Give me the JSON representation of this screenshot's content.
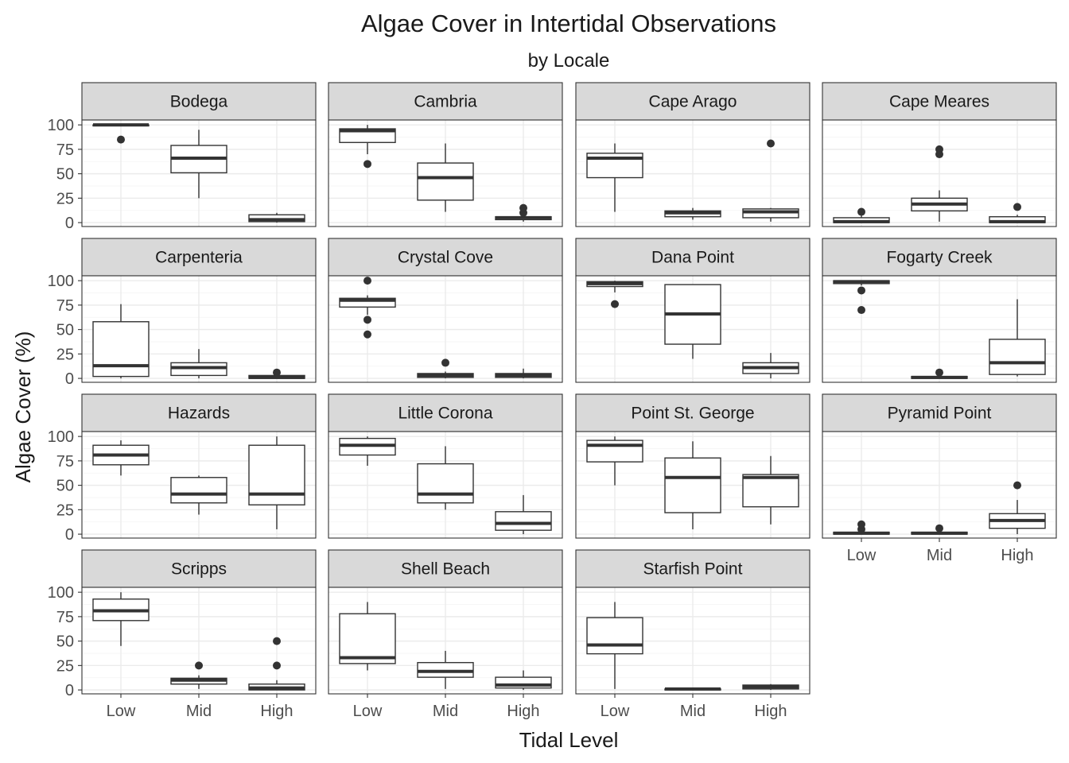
{
  "chart_data": {
    "type": "boxplot",
    "title": "Algae Cover in Intertidal Observations",
    "subtitle": "by Locale",
    "xlabel": "Tidal Level",
    "ylabel": "Algae Cover (%)",
    "categories": [
      "Low",
      "Mid",
      "High"
    ],
    "yticks": [
      0,
      25,
      50,
      75,
      100
    ],
    "ylim": [
      -4,
      105
    ],
    "grid": true,
    "facets": [
      {
        "name": "Bodega",
        "boxes": [
          {
            "q1": 99,
            "median": 100,
            "q3": 100,
            "lo": 99,
            "hi": 100,
            "outliers": [
              85
            ]
          },
          {
            "q1": 51,
            "median": 66,
            "q3": 79,
            "lo": 25,
            "hi": 95,
            "outliers": []
          },
          {
            "q1": 1,
            "median": 3,
            "q3": 8,
            "lo": 0,
            "hi": 10,
            "outliers": []
          }
        ]
      },
      {
        "name": "Cambria",
        "boxes": [
          {
            "q1": 82,
            "median": 94,
            "q3": 96,
            "lo": 70,
            "hi": 100,
            "outliers": [
              60
            ]
          },
          {
            "q1": 23,
            "median": 46,
            "q3": 61,
            "lo": 11,
            "hi": 81,
            "outliers": []
          },
          {
            "q1": 3,
            "median": 5,
            "q3": 6,
            "lo": 1,
            "hi": 10,
            "outliers": [
              10,
              15
            ]
          }
        ]
      },
      {
        "name": "Cape Arago",
        "boxes": [
          {
            "q1": 46,
            "median": 66,
            "q3": 71,
            "lo": 11,
            "hi": 81,
            "outliers": []
          },
          {
            "q1": 6,
            "median": 10,
            "q3": 12,
            "lo": 3,
            "hi": 15,
            "outliers": []
          },
          {
            "q1": 5,
            "median": 11,
            "q3": 14,
            "lo": 1,
            "hi": 15,
            "outliers": [
              81
            ]
          }
        ]
      },
      {
        "name": "Cape Meares",
        "boxes": [
          {
            "q1": 0,
            "median": 1,
            "q3": 5,
            "lo": 0,
            "hi": 8,
            "outliers": [
              11
            ]
          },
          {
            "q1": 12,
            "median": 19,
            "q3": 25,
            "lo": 1,
            "hi": 33,
            "outliers": [
              70,
              75
            ]
          },
          {
            "q1": 0,
            "median": 1,
            "q3": 6,
            "lo": 0,
            "hi": 8,
            "outliers": [
              16
            ]
          }
        ]
      },
      {
        "name": "Carpenteria",
        "boxes": [
          {
            "q1": 2,
            "median": 13,
            "q3": 58,
            "lo": 0,
            "hi": 76,
            "outliers": []
          },
          {
            "q1": 3,
            "median": 11,
            "q3": 16,
            "lo": 0,
            "hi": 30,
            "outliers": []
          },
          {
            "q1": 0,
            "median": 1,
            "q3": 3,
            "lo": 0,
            "hi": 5,
            "outliers": [
              6
            ]
          }
        ]
      },
      {
        "name": "Crystal Cove",
        "boxes": [
          {
            "q1": 73,
            "median": 80,
            "q3": 82,
            "lo": 65,
            "hi": 85,
            "outliers": [
              45,
              60,
              100
            ]
          },
          {
            "q1": 1,
            "median": 3,
            "q3": 5,
            "lo": 0,
            "hi": 7,
            "outliers": [
              16
            ]
          },
          {
            "q1": 1,
            "median": 3,
            "q3": 5,
            "lo": 0,
            "hi": 10,
            "outliers": []
          }
        ]
      },
      {
        "name": "Dana Point",
        "boxes": [
          {
            "q1": 94,
            "median": 97,
            "q3": 99,
            "lo": 88,
            "hi": 100,
            "outliers": [
              76
            ]
          },
          {
            "q1": 35,
            "median": 66,
            "q3": 96,
            "lo": 20,
            "hi": 96,
            "outliers": []
          },
          {
            "q1": 5,
            "median": 11,
            "q3": 16,
            "lo": 0,
            "hi": 26,
            "outliers": []
          }
        ]
      },
      {
        "name": "Fogarty Creek",
        "boxes": [
          {
            "q1": 97,
            "median": 99,
            "q3": 100,
            "lo": 95,
            "hi": 100,
            "outliers": [
              70,
              90
            ]
          },
          {
            "q1": 0,
            "median": 1,
            "q3": 2,
            "lo": 0,
            "hi": 3,
            "outliers": [
              6
            ]
          },
          {
            "q1": 4,
            "median": 16,
            "q3": 40,
            "lo": 2,
            "hi": 81,
            "outliers": []
          }
        ]
      },
      {
        "name": "Hazards",
        "boxes": [
          {
            "q1": 71,
            "median": 81,
            "q3": 91,
            "lo": 60,
            "hi": 96,
            "outliers": []
          },
          {
            "q1": 32,
            "median": 41,
            "q3": 58,
            "lo": 20,
            "hi": 60,
            "outliers": []
          },
          {
            "q1": 30,
            "median": 41,
            "q3": 91,
            "lo": 5,
            "hi": 100,
            "outliers": []
          }
        ]
      },
      {
        "name": "Little Corona",
        "boxes": [
          {
            "q1": 81,
            "median": 91,
            "q3": 98,
            "lo": 70,
            "hi": 100,
            "outliers": []
          },
          {
            "q1": 32,
            "median": 41,
            "q3": 72,
            "lo": 25,
            "hi": 90,
            "outliers": []
          },
          {
            "q1": 4,
            "median": 11,
            "q3": 23,
            "lo": 0,
            "hi": 40,
            "outliers": []
          }
        ]
      },
      {
        "name": "Point St. George",
        "boxes": [
          {
            "q1": 74,
            "median": 91,
            "q3": 96,
            "lo": 50,
            "hi": 100,
            "outliers": []
          },
          {
            "q1": 22,
            "median": 58,
            "q3": 78,
            "lo": 5,
            "hi": 95,
            "outliers": []
          },
          {
            "q1": 28,
            "median": 58,
            "q3": 61,
            "lo": 10,
            "hi": 80,
            "outliers": []
          }
        ]
      },
      {
        "name": "Pyramid Point",
        "boxes": [
          {
            "q1": 0,
            "median": 1,
            "q3": 2,
            "lo": 0,
            "hi": 3,
            "outliers": [
              5,
              10
            ]
          },
          {
            "q1": 0,
            "median": 1,
            "q3": 2,
            "lo": 0,
            "hi": 3,
            "outliers": [
              6
            ]
          },
          {
            "q1": 6,
            "median": 14,
            "q3": 21,
            "lo": 0,
            "hi": 35,
            "outliers": [
              50
            ]
          }
        ]
      },
      {
        "name": "Scripps",
        "boxes": [
          {
            "q1": 71,
            "median": 81,
            "q3": 93,
            "lo": 45,
            "hi": 100,
            "outliers": []
          },
          {
            "q1": 6,
            "median": 10,
            "q3": 12,
            "lo": 1,
            "hi": 15,
            "outliers": [
              25
            ]
          },
          {
            "q1": 0,
            "median": 2,
            "q3": 6,
            "lo": 0,
            "hi": 10,
            "outliers": [
              25,
              50
            ]
          }
        ]
      },
      {
        "name": "Shell Beach",
        "boxes": [
          {
            "q1": 27,
            "median": 33,
            "q3": 78,
            "lo": 20,
            "hi": 90,
            "outliers": []
          },
          {
            "q1": 13,
            "median": 19,
            "q3": 28,
            "lo": 1,
            "hi": 40,
            "outliers": []
          },
          {
            "q1": 2,
            "median": 5,
            "q3": 13,
            "lo": 0,
            "hi": 20,
            "outliers": []
          }
        ]
      },
      {
        "name": "Starfish Point",
        "boxes": [
          {
            "q1": 37,
            "median": 46,
            "q3": 74,
            "lo": 1,
            "hi": 90,
            "outliers": []
          },
          {
            "q1": 0,
            "median": 1,
            "q3": 1,
            "lo": 0,
            "hi": 1,
            "outliers": []
          },
          {
            "q1": 1,
            "median": 3,
            "q3": 5,
            "lo": 0,
            "hi": 6,
            "outliers": []
          }
        ]
      }
    ]
  }
}
